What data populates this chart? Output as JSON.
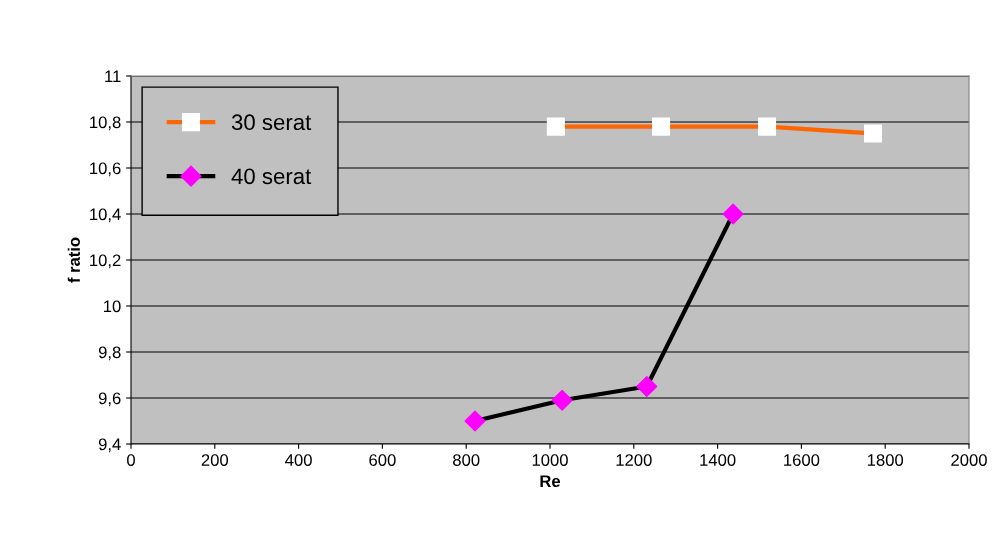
{
  "chart_data": {
    "type": "line",
    "xlabel": "Re",
    "ylabel": "f ratio",
    "series": [
      {
        "name": "30 serat",
        "color": "#ff6600",
        "marker": "square",
        "colors": [
          "#ffffff",
          "#ffffff",
          "#ffffff",
          "#ffffff"
        ],
        "x": [
          1014,
          1265,
          1518,
          1771
        ],
        "values": [
          10.78,
          10.78,
          10.78,
          10.75
        ]
      },
      {
        "name": "40 serat",
        "color": "#000000",
        "marker": "diamond",
        "colors": [
          "#ff00ff",
          "#ff00ff",
          "#ff00ff",
          "#ff00ff"
        ],
        "x": [
          821,
          1029,
          1231,
          1437
        ],
        "values": [
          9.5,
          9.59,
          9.65,
          10.4
        ]
      }
    ],
    "xlim": [
      0,
      2000
    ],
    "xticks": [
      0,
      200,
      400,
      600,
      800,
      1000,
      1200,
      1400,
      1600,
      1800,
      2000
    ],
    "ylim": [
      9.4,
      11
    ],
    "yticks": [
      {
        "value": 9.4,
        "label": "9,4"
      },
      {
        "value": 9.6,
        "label": "9,6"
      },
      {
        "value": 9.8,
        "label": "9,8"
      },
      {
        "value": 10,
        "label": "10"
      },
      {
        "value": 10.2,
        "label": "10,2"
      },
      {
        "value": 10.4,
        "label": "10,4"
      },
      {
        "value": 10.6,
        "label": "10,6"
      },
      {
        "value": 10.8,
        "label": "10,8"
      },
      {
        "value": 11,
        "label": "11"
      }
    ],
    "grid": "y",
    "legend": "top left"
  }
}
